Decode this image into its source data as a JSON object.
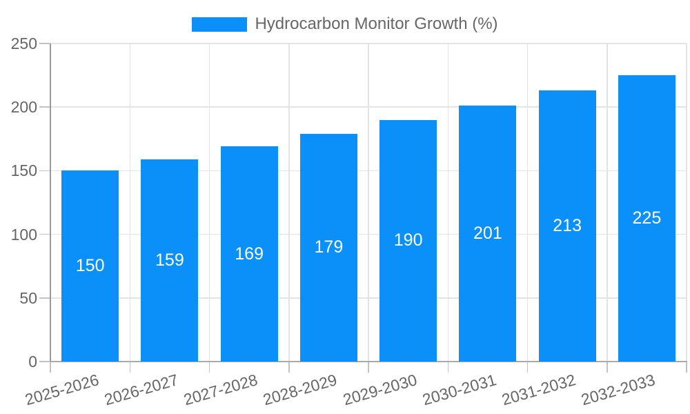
{
  "legend": {
    "label": "Hydrocarbon Monitor Growth (%)"
  },
  "colors": {
    "bar": "#0a90f8",
    "label_text": "#666666",
    "value_text": "#ffffff",
    "gridline": "#e3e3e3",
    "axis_y": "#999999",
    "axis_x": "#aaaaaa",
    "tick": "#c2c2c2"
  },
  "chart_data": {
    "type": "bar",
    "title": "Hydrocarbon Monitor Growth (%)",
    "categories": [
      "2025-2026",
      "2026-2027",
      "2027-2028",
      "2028-2029",
      "2029-2030",
      "2030-2031",
      "2031-2032",
      "2032-2033"
    ],
    "values": [
      150,
      159,
      169,
      179,
      190,
      201,
      213,
      225
    ],
    "xlabel": "",
    "ylabel": "",
    "ylim": [
      0,
      250
    ],
    "yticks": [
      0,
      50,
      100,
      150,
      200,
      250
    ],
    "grid": true,
    "legend_position": "top-center",
    "value_labels": "inside-center",
    "x_label_rotation_deg": -16
  }
}
